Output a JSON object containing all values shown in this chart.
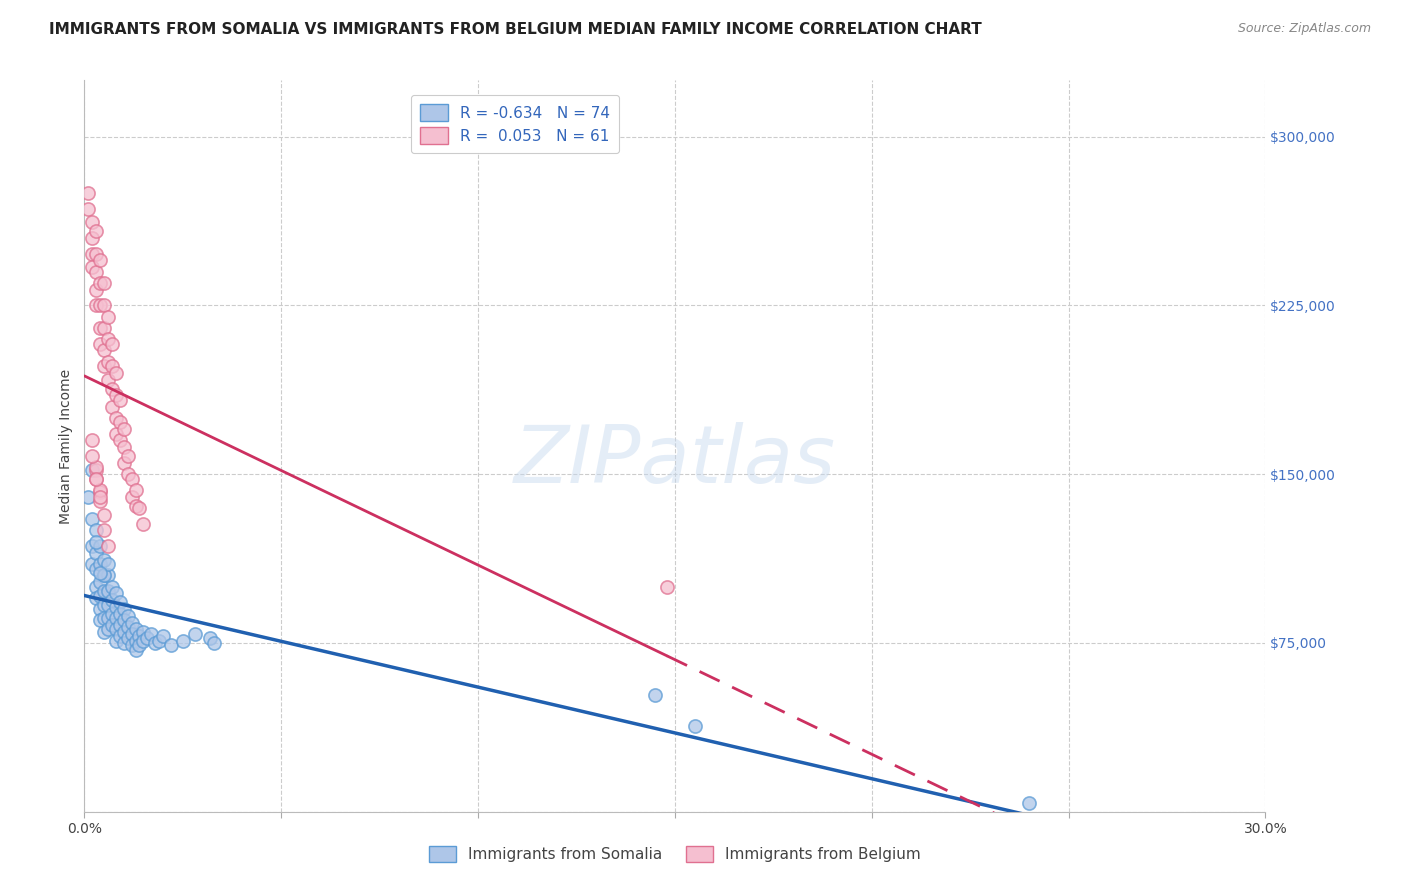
{
  "title": "IMMIGRANTS FROM SOMALIA VS IMMIGRANTS FROM BELGIUM MEDIAN FAMILY INCOME CORRELATION CHART",
  "source": "Source: ZipAtlas.com",
  "ylabel": "Median Family Income",
  "watermark": "ZIPatlas",
  "xlim": [
    0.0,
    0.3
  ],
  "ylim": [
    0,
    325000
  ],
  "yticks": [
    0,
    75000,
    150000,
    225000,
    300000
  ],
  "ytick_labels": [
    "",
    "$75,000",
    "$150,000",
    "$225,000",
    "$300,000"
  ],
  "xtick_vals": [
    0.0,
    0.05,
    0.1,
    0.15,
    0.2,
    0.25,
    0.3
  ],
  "xtick_labels": [
    "0.0%",
    "",
    "",
    "",
    "",
    "",
    "30.0%"
  ],
  "background_color": "#ffffff",
  "grid_color": "#cccccc",
  "somalia_color": "#aec6e8",
  "somalia_edge_color": "#5b9bd5",
  "belgium_color": "#f5bfd0",
  "belgium_edge_color": "#e07090",
  "somalia_line_color": "#2060b0",
  "belgium_line_color": "#cc3060",
  "legend_somalia_label": "R = -0.634   N = 74",
  "legend_belgium_label": "R =  0.053   N = 61",
  "title_fontsize": 11,
  "axis_label_fontsize": 10,
  "tick_label_fontsize": 10,
  "somalia_scatter_x": [
    0.001,
    0.002,
    0.002,
    0.002,
    0.003,
    0.003,
    0.003,
    0.003,
    0.003,
    0.004,
    0.004,
    0.004,
    0.004,
    0.004,
    0.004,
    0.005,
    0.005,
    0.005,
    0.005,
    0.005,
    0.005,
    0.006,
    0.006,
    0.006,
    0.006,
    0.006,
    0.007,
    0.007,
    0.007,
    0.007,
    0.008,
    0.008,
    0.008,
    0.008,
    0.008,
    0.009,
    0.009,
    0.009,
    0.009,
    0.01,
    0.01,
    0.01,
    0.01,
    0.011,
    0.011,
    0.011,
    0.012,
    0.012,
    0.012,
    0.013,
    0.013,
    0.013,
    0.014,
    0.014,
    0.015,
    0.015,
    0.016,
    0.017,
    0.018,
    0.019,
    0.02,
    0.022,
    0.025,
    0.028,
    0.032,
    0.033,
    0.145,
    0.155,
    0.002,
    0.003,
    0.005,
    0.006,
    0.24,
    0.004
  ],
  "somalia_scatter_y": [
    140000,
    130000,
    118000,
    110000,
    125000,
    115000,
    108000,
    100000,
    95000,
    118000,
    110000,
    102000,
    96000,
    90000,
    85000,
    112000,
    105000,
    98000,
    92000,
    86000,
    80000,
    105000,
    98000,
    92000,
    86000,
    81000,
    100000,
    94000,
    88000,
    83000,
    97000,
    91000,
    86000,
    81000,
    76000,
    93000,
    88000,
    83000,
    78000,
    90000,
    85000,
    80000,
    75000,
    87000,
    82000,
    77000,
    84000,
    79000,
    74000,
    81000,
    76000,
    72000,
    78000,
    74000,
    80000,
    76000,
    77000,
    79000,
    75000,
    76000,
    78000,
    74000,
    76000,
    79000,
    77000,
    75000,
    52000,
    38000,
    152000,
    120000,
    105000,
    110000,
    4000,
    106000
  ],
  "belgium_scatter_x": [
    0.001,
    0.001,
    0.002,
    0.002,
    0.002,
    0.002,
    0.003,
    0.003,
    0.003,
    0.003,
    0.003,
    0.004,
    0.004,
    0.004,
    0.004,
    0.004,
    0.005,
    0.005,
    0.005,
    0.005,
    0.005,
    0.006,
    0.006,
    0.006,
    0.006,
    0.007,
    0.007,
    0.007,
    0.007,
    0.008,
    0.008,
    0.008,
    0.008,
    0.009,
    0.009,
    0.009,
    0.01,
    0.01,
    0.01,
    0.011,
    0.011,
    0.012,
    0.012,
    0.013,
    0.013,
    0.014,
    0.015,
    0.002,
    0.003,
    0.004,
    0.003,
    0.004,
    0.005,
    0.005,
    0.006,
    0.003,
    0.004,
    0.148,
    0.002,
    0.003,
    0.004
  ],
  "belgium_scatter_y": [
    275000,
    268000,
    262000,
    255000,
    248000,
    242000,
    258000,
    248000,
    240000,
    232000,
    225000,
    245000,
    235000,
    225000,
    215000,
    208000,
    235000,
    225000,
    215000,
    205000,
    198000,
    220000,
    210000,
    200000,
    192000,
    208000,
    198000,
    188000,
    180000,
    195000,
    185000,
    175000,
    168000,
    183000,
    173000,
    165000,
    170000,
    162000,
    155000,
    158000,
    150000,
    148000,
    140000,
    143000,
    136000,
    135000,
    128000,
    165000,
    152000,
    142000,
    148000,
    138000,
    132000,
    125000,
    118000,
    153000,
    143000,
    100000,
    158000,
    148000,
    140000
  ]
}
